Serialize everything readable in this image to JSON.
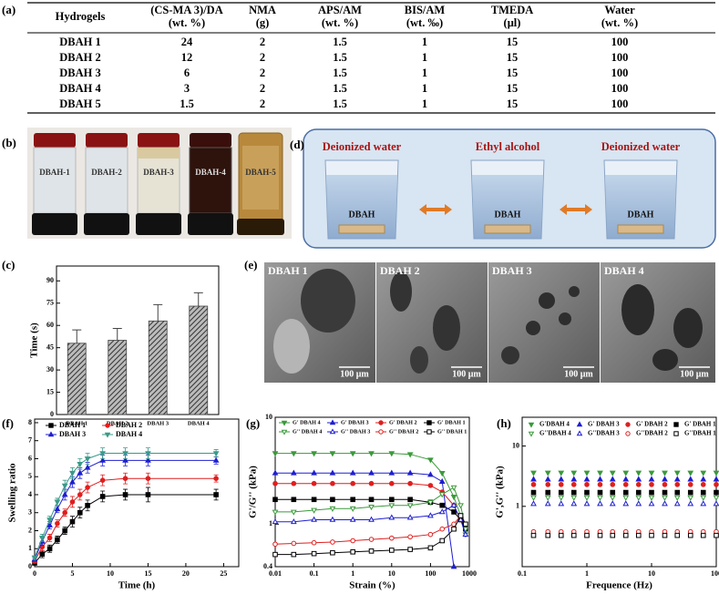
{
  "panel_labels": [
    "(a)",
    "(b)",
    "(c)",
    "(d)",
    "(e)",
    "(f)",
    "(g)",
    "(h)"
  ],
  "table": {
    "headers": [
      [
        "Hydrogels"
      ],
      [
        "(CS-MA 3)/DA",
        "(wt. %)"
      ],
      [
        "NMA",
        "(g)"
      ],
      [
        "APS/AM",
        "(wt. %)"
      ],
      [
        "BIS/AM",
        "(wt. ‰)"
      ],
      [
        "TMEDA",
        "(μl)"
      ],
      [
        "Water",
        "(wt. %)"
      ]
    ],
    "rows": [
      [
        "DBAH 1",
        "24",
        "2",
        "1.5",
        "1",
        "15",
        "100"
      ],
      [
        "DBAH 2",
        "12",
        "2",
        "1.5",
        "1",
        "15",
        "100"
      ],
      [
        "DBAH 3",
        "6",
        "2",
        "1.5",
        "1",
        "15",
        "100"
      ],
      [
        "DBAH 4",
        "3",
        "2",
        "1.5",
        "1",
        "15",
        "100"
      ],
      [
        "DBAH 5",
        "1.5",
        "2",
        "1.5",
        "1",
        "15",
        "100"
      ]
    ]
  },
  "photo": {
    "vials": [
      "DBAH-1",
      "DBAH-2",
      "DBAH-3",
      "DBAH-4",
      "DBAH-5"
    ]
  },
  "process": {
    "steps": [
      "Deionized water",
      "Ethyl alcohol",
      "Deionized water"
    ],
    "sample": [
      "DBAH",
      "DBAH",
      "DBAH"
    ]
  },
  "sem": {
    "images": [
      {
        "label": "DBAH 1",
        "scale": "100 μm"
      },
      {
        "label": "DBAH 2",
        "scale": "100 μm"
      },
      {
        "label": "DBAH 3",
        "scale": "100 μm"
      },
      {
        "label": "DBAH 4",
        "scale": "100 μm"
      }
    ]
  },
  "chart_data": [
    {
      "type": "bar",
      "categories": [
        "DBAH 1",
        "DBAH 2",
        "DBAH 3",
        "DBAH 4"
      ],
      "values": [
        48,
        50,
        63,
        73
      ],
      "errors": [
        9,
        8,
        11,
        9
      ],
      "y_label": "Time (s)",
      "ylim": [
        0,
        100
      ],
      "yticks": [
        0,
        15,
        30,
        45,
        60,
        75,
        90
      ],
      "color": "#444444"
    },
    {
      "type": "line",
      "x": [
        0,
        1,
        2,
        3,
        4,
        5,
        6,
        7,
        9,
        12,
        15,
        24
      ],
      "xlim": [
        0,
        27
      ],
      "xticks": [
        0,
        5,
        10,
        15,
        20,
        25
      ],
      "ylim": [
        0,
        8.2
      ],
      "yticks": [
        0,
        1,
        2,
        3,
        4,
        5,
        6,
        7,
        8
      ],
      "x_label": "Time (h)",
      "y_label": "Swelling ratio",
      "series": [
        {
          "name": "DBAH 1",
          "color": "#000000",
          "marker": "square",
          "filled": true,
          "values": [
            0.2,
            0.7,
            1.0,
            1.5,
            2.0,
            2.5,
            3.0,
            3.4,
            3.9,
            4.0,
            4.0,
            4.0
          ],
          "errors": [
            0.1,
            0.2,
            0.2,
            0.2,
            0.2,
            0.3,
            0.3,
            0.3,
            0.3,
            0.3,
            0.4,
            0.3
          ]
        },
        {
          "name": "DBAH 2",
          "color": "#e01e1e",
          "marker": "circle",
          "filled": true,
          "values": [
            0.3,
            1.1,
            1.6,
            2.4,
            3.0,
            3.6,
            4.0,
            4.4,
            4.8,
            4.9,
            4.9,
            4.9
          ],
          "errors": [
            0.1,
            0.2,
            0.2,
            0.2,
            0.2,
            0.3,
            0.3,
            0.3,
            0.3,
            0.3,
            0.3,
            0.2
          ]
        },
        {
          "name": "DBAH 3",
          "color": "#1e1ed2",
          "marker": "triangle-up",
          "filled": true,
          "values": [
            0.4,
            1.4,
            2.3,
            3.2,
            4.0,
            4.7,
            5.2,
            5.5,
            5.9,
            5.9,
            5.9,
            5.9
          ],
          "errors": [
            0.1,
            0.2,
            0.2,
            0.2,
            0.3,
            0.3,
            0.3,
            0.3,
            0.3,
            0.3,
            0.3,
            0.2
          ]
        },
        {
          "name": "DBAH 4",
          "color": "#3a9a8a",
          "marker": "triangle-down",
          "filled": true,
          "values": [
            0.5,
            1.6,
            2.6,
            3.6,
            4.5,
            5.2,
            5.7,
            6.0,
            6.3,
            6.3,
            6.3,
            6.3
          ],
          "errors": [
            0.1,
            0.2,
            0.2,
            0.2,
            0.3,
            0.3,
            0.3,
            0.3,
            0.3,
            0.3,
            0.3,
            0.2
          ]
        }
      ]
    },
    {
      "type": "line",
      "xlog": true,
      "ylog": true,
      "x": [
        0.01,
        0.03,
        0.1,
        0.3,
        1,
        3,
        10,
        30,
        100,
        200,
        400,
        600,
        800
      ],
      "xlim": [
        0.01,
        1000
      ],
      "xticks": [
        0.01,
        0.1,
        1,
        10,
        100,
        1000
      ],
      "ylim": [
        0.4,
        10
      ],
      "yticks": [
        0.4,
        1,
        10
      ],
      "x_label": "Strain (%)",
      "y_label": "G'/G'' (kPa)",
      "series": [
        {
          "name": "G'  DBAH 4",
          "color": "#3a9a3a",
          "marker": "triangle-down",
          "filled": true,
          "values": [
            4.6,
            4.6,
            4.6,
            4.6,
            4.6,
            4.6,
            4.6,
            4.5,
            4.0,
            3.0,
            1.8,
            1.2,
            0.8
          ]
        },
        {
          "name": "G'  DBAH 3",
          "color": "#1e1ed2",
          "marker": "triangle-up",
          "filled": true,
          "values": [
            3.0,
            3.0,
            3.0,
            3.0,
            3.0,
            3.0,
            3.0,
            3.0,
            2.9,
            2.5,
            0.4,
            null,
            null
          ]
        },
        {
          "name": "G'  DBAH 2",
          "color": "#e01e1e",
          "marker": "circle",
          "filled": true,
          "values": [
            2.4,
            2.4,
            2.4,
            2.4,
            2.4,
            2.4,
            2.4,
            2.4,
            2.3,
            2.0,
            1.5,
            1.1,
            0.9
          ]
        },
        {
          "name": "G'  DBAH 1",
          "color": "#000000",
          "marker": "square",
          "filled": true,
          "values": [
            1.7,
            1.7,
            1.7,
            1.7,
            1.7,
            1.7,
            1.7,
            1.7,
            1.6,
            1.5,
            1.3,
            1.1,
            0.9
          ]
        },
        {
          "name": "G''  DBAH 4",
          "color": "#3a9a3a",
          "marker": "triangle-down",
          "filled": false,
          "values": [
            1.3,
            1.3,
            1.35,
            1.4,
            1.4,
            1.45,
            1.5,
            1.5,
            1.6,
            1.9,
            2.2,
            1.5,
            0.9
          ]
        },
        {
          "name": "G''  DBAH 3",
          "color": "#1e1ed2",
          "marker": "triangle-up",
          "filled": false,
          "values": [
            1.05,
            1.05,
            1.1,
            1.1,
            1.1,
            1.1,
            1.15,
            1.15,
            1.2,
            1.3,
            1.5,
            1.1,
            0.8
          ]
        },
        {
          "name": "G''  DBAH 2",
          "color": "#e01e1e",
          "marker": "circle",
          "filled": false,
          "values": [
            0.65,
            0.66,
            0.67,
            0.68,
            0.7,
            0.72,
            0.74,
            0.76,
            0.8,
            0.9,
            1.0,
            1.2,
            1.0
          ]
        },
        {
          "name": "G''  DBAH 1",
          "color": "#000000",
          "marker": "square",
          "filled": false,
          "values": [
            0.52,
            0.52,
            0.53,
            0.54,
            0.55,
            0.56,
            0.57,
            0.58,
            0.6,
            0.7,
            0.9,
            1.2,
            1.0
          ]
        }
      ]
    },
    {
      "type": "scatter",
      "xlog": true,
      "ylog": true,
      "x": [
        0.15,
        0.25,
        0.4,
        0.63,
        1,
        1.6,
        2.5,
        4,
        6.3,
        10,
        16,
        25,
        40,
        63,
        100
      ],
      "xlim": [
        0.1,
        100
      ],
      "xticks": [
        0.1,
        1,
        10,
        100
      ],
      "ylim": [
        0.1,
        30
      ],
      "yticks": [
        1,
        10
      ],
      "x_label": "Frequence (Hz)",
      "y_label": "G',G'' (kPa)",
      "series": [
        {
          "name": "G'DBAH 4",
          "color": "#3a9a3a",
          "marker": "triangle-down",
          "filled": true,
          "values": [
            3.6,
            3.6,
            3.6,
            3.6,
            3.6,
            3.6,
            3.6,
            3.6,
            3.6,
            3.6,
            3.6,
            3.6,
            3.6,
            3.6,
            3.6
          ]
        },
        {
          "name": "G' DBAH 3",
          "color": "#1e1ed2",
          "marker": "triangle-up",
          "filled": true,
          "values": [
            2.8,
            2.8,
            2.8,
            2.8,
            2.8,
            2.8,
            2.8,
            2.8,
            2.8,
            2.8,
            2.8,
            2.8,
            2.8,
            2.8,
            2.8
          ]
        },
        {
          "name": "G' DBAH 2",
          "color": "#e01e1e",
          "marker": "circle",
          "filled": true,
          "values": [
            2.3,
            2.3,
            2.3,
            2.3,
            2.3,
            2.3,
            2.3,
            2.3,
            2.3,
            2.3,
            2.3,
            2.3,
            2.3,
            2.3,
            2.3
          ]
        },
        {
          "name": "G' DBAH 1",
          "color": "#000000",
          "marker": "square",
          "filled": true,
          "values": [
            1.7,
            1.7,
            1.7,
            1.7,
            1.7,
            1.7,
            1.7,
            1.7,
            1.7,
            1.7,
            1.7,
            1.7,
            1.7,
            1.7,
            1.7
          ]
        },
        {
          "name": "G''DBAH 4",
          "color": "#3a9a3a",
          "marker": "triangle-down",
          "filled": false,
          "values": [
            1.4,
            1.4,
            1.4,
            1.4,
            1.4,
            1.4,
            1.4,
            1.4,
            1.4,
            1.4,
            1.4,
            1.4,
            1.4,
            1.4,
            1.4
          ]
        },
        {
          "name": "G''DBAH 3",
          "color": "#1e1ed2",
          "marker": "triangle-up",
          "filled": false,
          "values": [
            1.1,
            1.1,
            1.1,
            1.1,
            1.1,
            1.1,
            1.1,
            1.1,
            1.1,
            1.1,
            1.1,
            1.1,
            1.1,
            1.1,
            1.1
          ]
        },
        {
          "name": "G''DBAH 2",
          "color": "#e01e1e",
          "marker": "circle",
          "filled": false,
          "values": [
            0.38,
            0.38,
            0.38,
            0.38,
            0.38,
            0.38,
            0.38,
            0.38,
            0.38,
            0.38,
            0.38,
            0.38,
            0.38,
            0.38,
            0.38
          ]
        },
        {
          "name": "G''DBAH 1",
          "color": "#000000",
          "marker": "square",
          "filled": false,
          "values": [
            0.33,
            0.33,
            0.33,
            0.33,
            0.33,
            0.33,
            0.33,
            0.33,
            0.33,
            0.33,
            0.33,
            0.33,
            0.33,
            0.33,
            0.33
          ]
        }
      ]
    }
  ]
}
